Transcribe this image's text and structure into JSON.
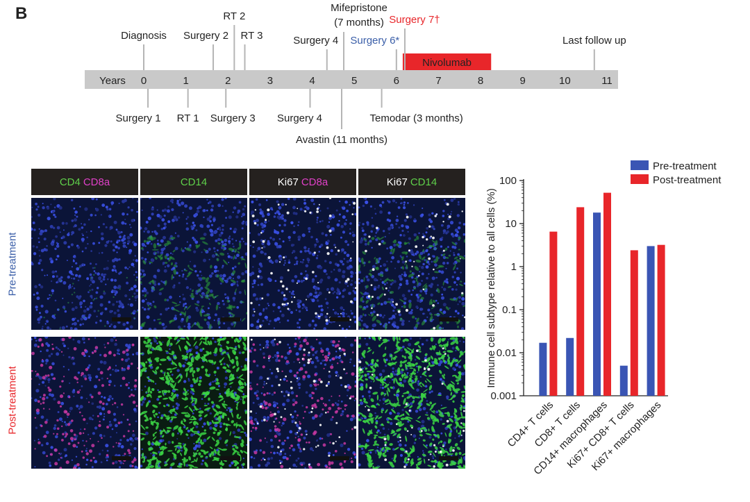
{
  "panel_letter": "B",
  "timeline": {
    "axis_label": "Years",
    "years": [
      "0",
      "1",
      "2",
      "3",
      "4",
      "5",
      "6",
      "7",
      "8",
      "9",
      "10",
      "11"
    ],
    "nivolumab": {
      "label": "Nivolumab",
      "start": 6.15,
      "end": 8.25,
      "color": "#e8262a"
    },
    "events_above": [
      {
        "label": "Diagnosis",
        "t": 0.0,
        "color": "#222222"
      },
      {
        "label": "Surgery 2",
        "t": 1.65,
        "color": "#222222"
      },
      {
        "label": "RT 2",
        "t": 2.15,
        "color": "#222222"
      },
      {
        "label": "RT 3",
        "t": 2.4,
        "color": "#222222"
      },
      {
        "label": "Surgery 4",
        "t": 4.35,
        "color": "#222222"
      },
      {
        "label": "Mifepristone",
        "label2": "(7 months)",
        "t": 4.75,
        "color": "#222222"
      },
      {
        "label": "Surgery 6*",
        "t": 6.0,
        "color": "#3a5ea8"
      },
      {
        "label": "Surgery 7†",
        "t": 6.2,
        "color": "#e8262a"
      },
      {
        "label": "Last follow up",
        "t": 10.7,
        "color": "#222222"
      }
    ],
    "events_below": [
      {
        "label": "Surgery 1",
        "t": 0.1,
        "color": "#222222"
      },
      {
        "label": "RT 1",
        "t": 1.05,
        "color": "#222222"
      },
      {
        "label": "Surgery 3",
        "t": 1.95,
        "color": "#222222"
      },
      {
        "label": "Surgery 4",
        "t": 3.95,
        "color": "#222222"
      },
      {
        "label": "Avastin (11 months)",
        "t": 4.7,
        "color": "#222222"
      },
      {
        "label": "Temodar (3 months)",
        "t": 5.65,
        "color": "#222222"
      }
    ]
  },
  "image_panel": {
    "columns": [
      {
        "parts": [
          {
            "text": "CD4",
            "color": "#5fd04a"
          },
          {
            "text": "CD8a",
            "color": "#e040c8"
          }
        ]
      },
      {
        "parts": [
          {
            "text": "CD14",
            "color": "#5fd04a"
          }
        ]
      },
      {
        "parts": [
          {
            "text": "Ki67",
            "color": "#ffffff"
          },
          {
            "text": "CD8a",
            "color": "#e040c8"
          }
        ]
      },
      {
        "parts": [
          {
            "text": "Ki67",
            "color": "#ffffff"
          },
          {
            "text": "CD14",
            "color": "#5fd04a"
          }
        ]
      }
    ],
    "rows": [
      {
        "label": "Pre-treatment",
        "color": "#3a5ea8"
      },
      {
        "label": "Post-treatment",
        "color": "#e8262a"
      }
    ]
  },
  "chart_data": {
    "type": "bar",
    "yscale": "log",
    "ylabel": "Immune cell subtype relative to all cells (%)",
    "ylim": [
      0.001,
      100
    ],
    "yticks": [
      "0.001",
      "0.01",
      "0.1",
      "1",
      "10",
      "100"
    ],
    "categories": [
      "CD4+ T cells",
      "CD8+ T cells",
      "CD14+ macrophages",
      "Ki67+ CD8+ T cells",
      "Ki67+ macrophages"
    ],
    "series": [
      {
        "name": "Pre-treatment",
        "color": "#3a55b4",
        "values": [
          0.017,
          0.022,
          18,
          0.005,
          3.0
        ]
      },
      {
        "name": "Post-treatment",
        "color": "#e8262a",
        "values": [
          6.5,
          24,
          52,
          2.4,
          3.2
        ]
      }
    ],
    "legend_position": "top-right"
  }
}
